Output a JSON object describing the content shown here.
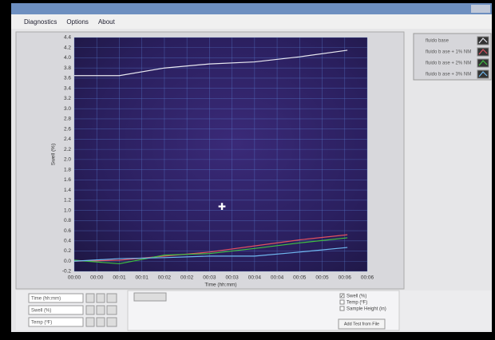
{
  "menu": [
    "Diagnostics",
    "Options",
    "About"
  ],
  "chart_data": {
    "type": "line",
    "xlabel": "Time (hh:mm)",
    "ylabel": "Swell (%)",
    "x": [
      0,
      1,
      2,
      3,
      4,
      5,
      6.06
    ],
    "series": [
      {
        "name": "fluido base",
        "color": "#e8e8f0",
        "values": [
          3.65,
          3.65,
          3.8,
          3.88,
          3.92,
          4.02,
          4.15
        ]
      },
      {
        "name": "fluido b ase + 1% NM",
        "color": "#e05060",
        "values": [
          0.0,
          0.02,
          0.1,
          0.18,
          0.3,
          0.42,
          0.52
        ]
      },
      {
        "name": "fluido b ase + 2% NM",
        "color": "#40c040",
        "values": [
          0.02,
          -0.05,
          0.12,
          0.15,
          0.25,
          0.36,
          0.46
        ]
      },
      {
        "name": "fluido b ase + 3% NM",
        "color": "#70b8f0",
        "values": [
          0.0,
          0.05,
          0.07,
          0.1,
          0.1,
          0.18,
          0.27
        ]
      }
    ],
    "xlim": [
      0,
      6.5
    ],
    "xticks": [
      {
        "value": 0,
        "label": "00:00"
      },
      {
        "value": 0.5,
        "label": "00:00"
      },
      {
        "value": 1,
        "label": "00:01"
      },
      {
        "value": 1.5,
        "label": "00:01"
      },
      {
        "value": 2,
        "label": "00:02"
      },
      {
        "value": 2.5,
        "label": "00:02"
      },
      {
        "value": 3,
        "label": "00:03"
      },
      {
        "value": 3.5,
        "label": "00:03"
      },
      {
        "value": 4,
        "label": "00:04"
      },
      {
        "value": 4.5,
        "label": "00:04"
      },
      {
        "value": 5,
        "label": "00:05"
      },
      {
        "value": 5.5,
        "label": "00:05"
      },
      {
        "value": 6,
        "label": "00:06"
      },
      {
        "value": 6.5,
        "label": "00:06"
      }
    ],
    "ylim": [
      -0.2,
      4.4
    ],
    "yticks": [
      -0.2,
      {
        "value": 0,
        "label": "0.0"
      },
      0.2,
      0.4,
      0.6,
      0.8,
      {
        "value": 1,
        "label": "1.0"
      },
      1.2,
      1.4,
      1.6,
      1.8,
      {
        "value": 2,
        "label": "2.0"
      },
      2.2,
      2.4,
      2.6,
      2.8,
      {
        "value": 3,
        "label": "3.0"
      },
      3.2,
      3.4,
      3.6,
      3.8,
      {
        "value": 4,
        "label": "4.0"
      },
      4.2,
      4.4
    ],
    "grid": true
  },
  "fields": [
    "Time (hh:mm)",
    "Swell (%)",
    "Temp (ºF)"
  ],
  "checkboxes": [
    {
      "label": "Swell (%)",
      "checked": true
    },
    {
      "label": "Temp (ºF)",
      "checked": false
    },
    {
      "label": "Sample Height (in)",
      "checked": false
    }
  ],
  "button": "Add Test from File"
}
